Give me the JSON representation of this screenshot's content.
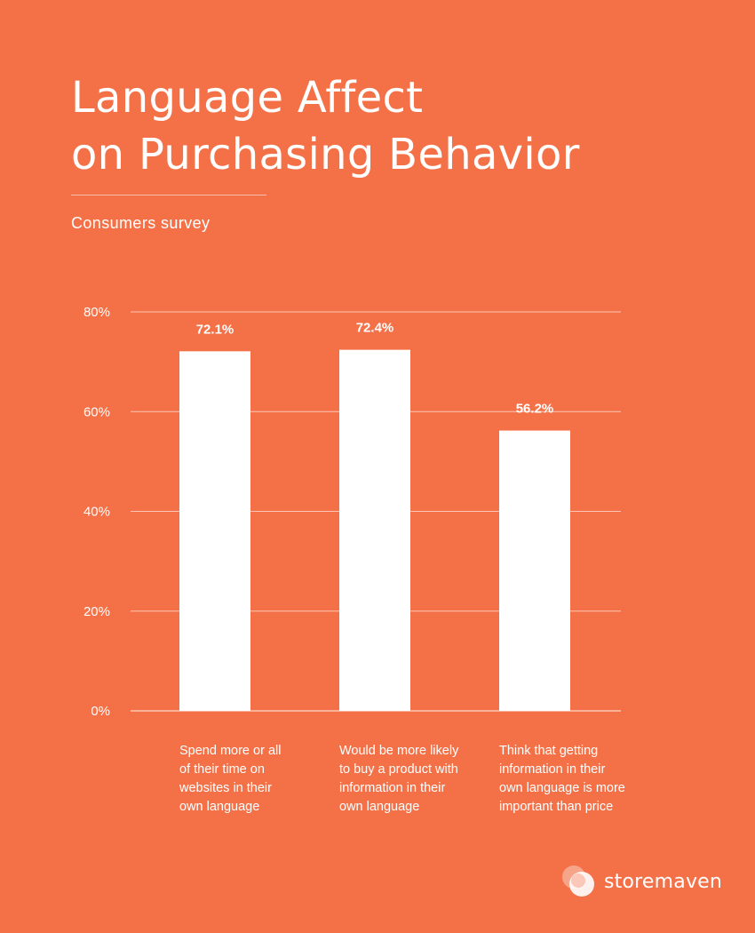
{
  "header": {
    "title_line1": "Language Affect",
    "title_line2": "on Purchasing Behavior",
    "subtitle": "Consumers survey"
  },
  "brand": {
    "name": "storemaven",
    "icon": "storemaven-logo-icon"
  },
  "colors": {
    "background": "#f47148",
    "bar": "#ffffff",
    "gridline": "#ffffff"
  },
  "chart_data": {
    "type": "bar",
    "title": "Language Affect on Purchasing Behavior",
    "subtitle": "Consumers survey",
    "categories": [
      "Spend more or all of their time on websites in their own language",
      "Would be more likely to buy a product with information in their own language",
      "Think that getting information in their own language is more important than price"
    ],
    "category_lines": [
      [
        "Spend more or all",
        "of their time on",
        "websites in their",
        "own language"
      ],
      [
        "Would be more likely",
        "to buy a product with",
        "information in their",
        "own language"
      ],
      [
        "Think that getting",
        "information in their",
        "own language is more",
        "important than price"
      ]
    ],
    "values": [
      72.1,
      72.4,
      56.2
    ],
    "value_labels": [
      "72.1%",
      "72.4%",
      "56.2%"
    ],
    "ylim": [
      0,
      80
    ],
    "yticks": [
      0,
      20,
      40,
      60,
      80
    ],
    "ytick_labels": [
      "0%",
      "20%",
      "40%",
      "60%",
      "80%"
    ],
    "grid": true,
    "legend": "none"
  }
}
